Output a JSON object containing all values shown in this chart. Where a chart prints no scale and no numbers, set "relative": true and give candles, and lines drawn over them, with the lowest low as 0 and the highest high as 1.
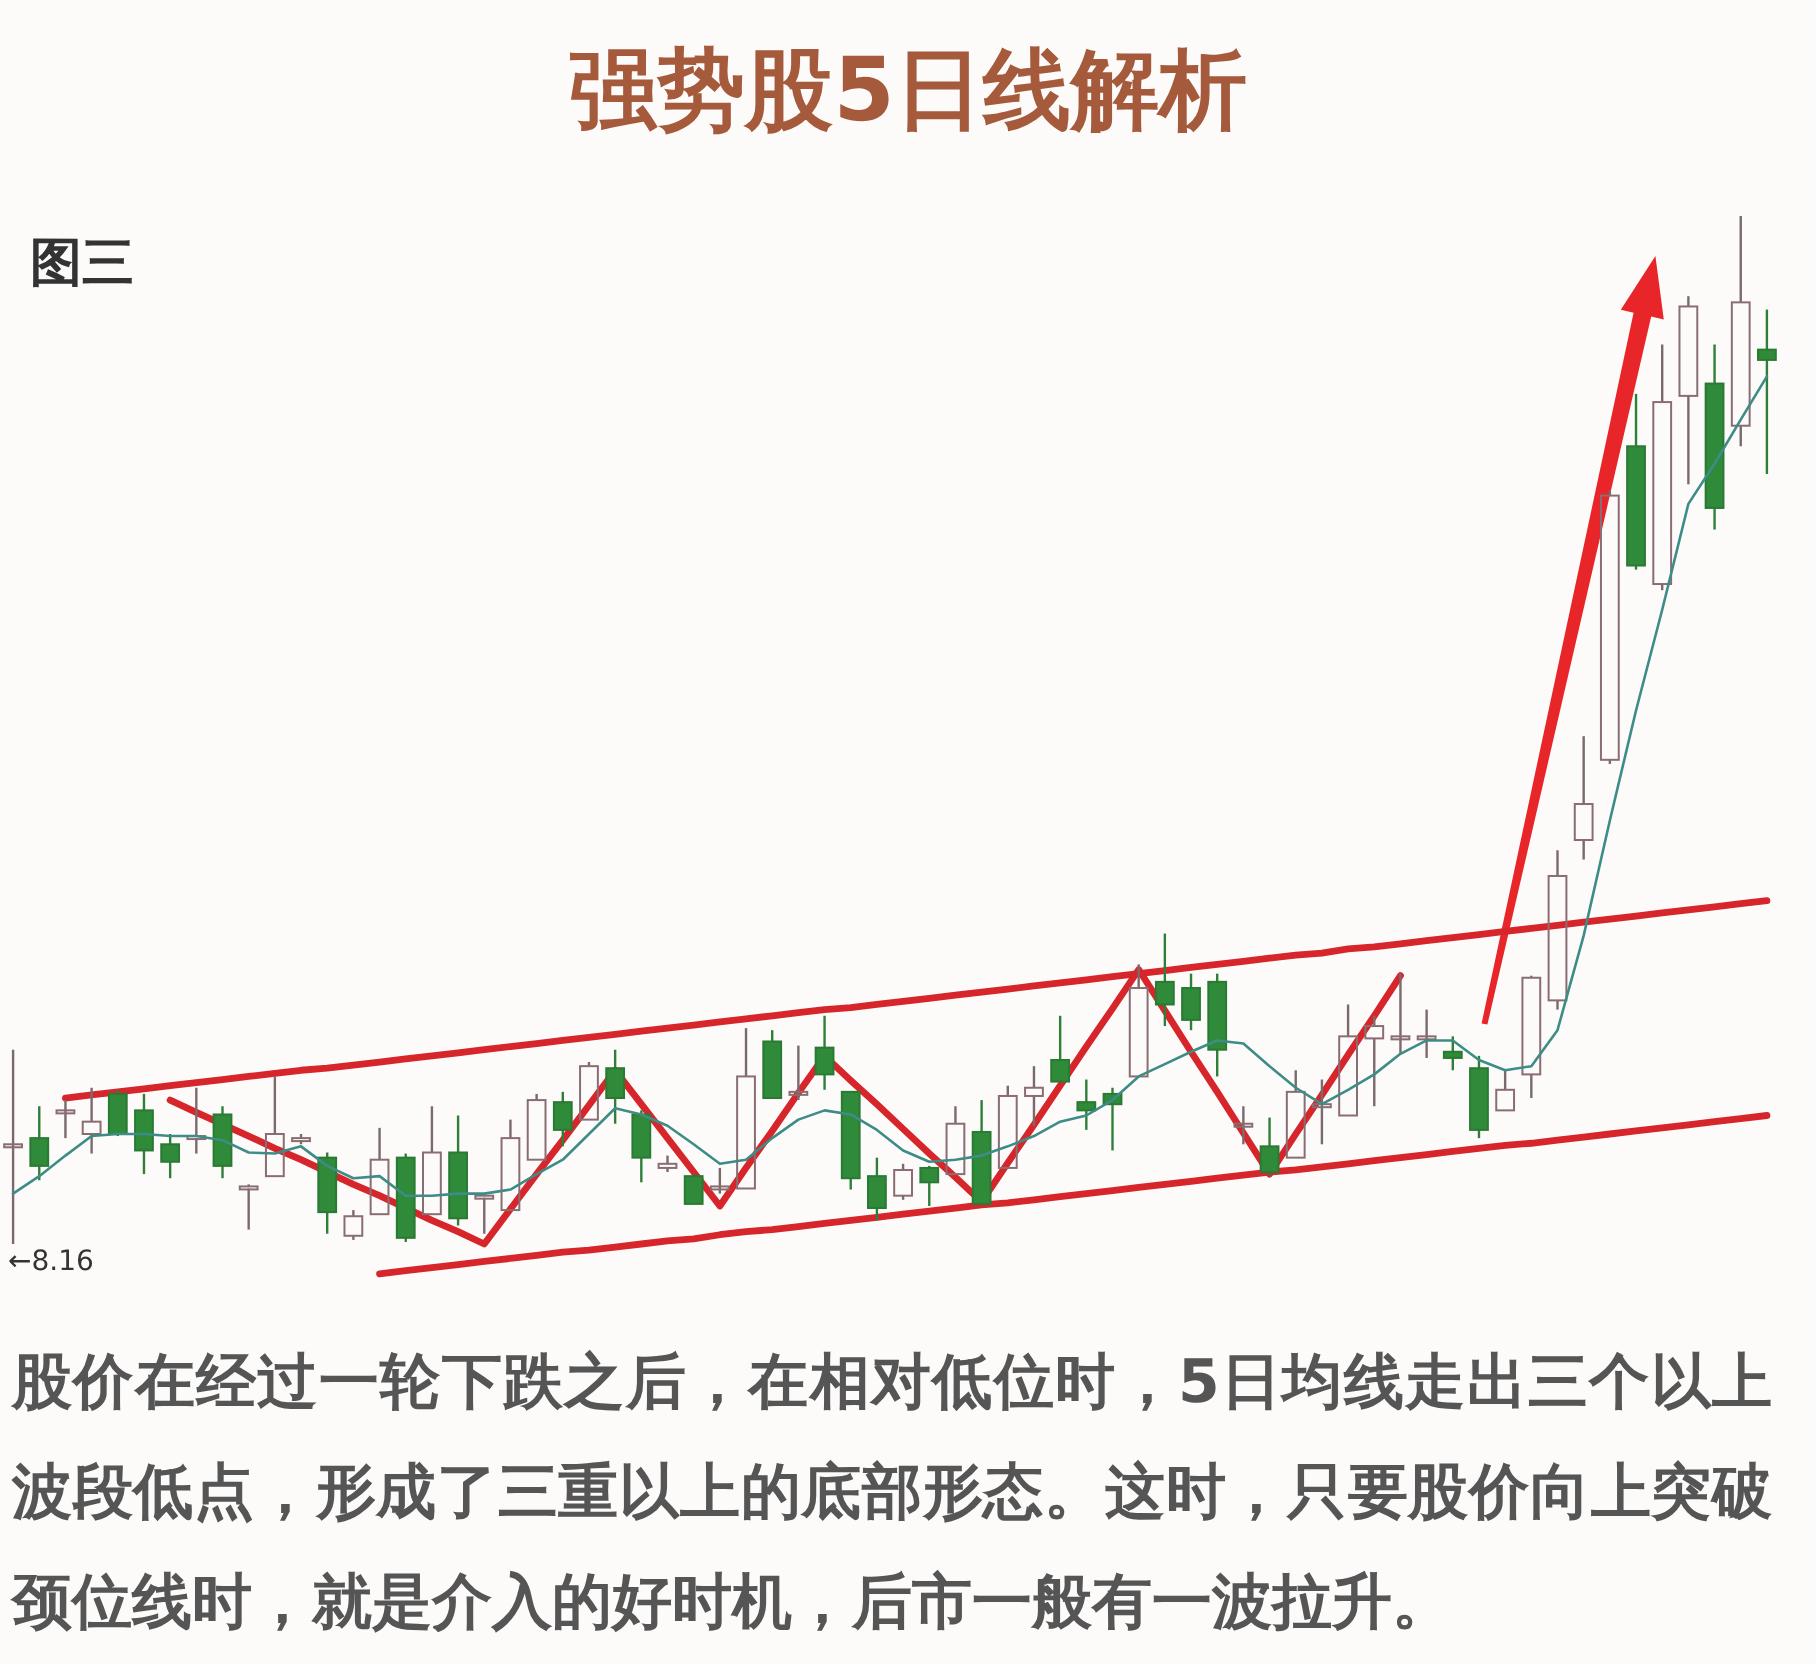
{
  "chart_data": {
    "type": "candlestick",
    "title": "强势股5日线解析",
    "annotations": [
      "图三",
      "←8.16",
      "股价在经过一轮下跌之后，在相对低位时，5日均线走出三个以上波段低点，形成了三重以上的底部形态。这时，只要股价向上突破颈位线时，就是介入的好时机，后市一般有一波拉升。"
    ],
    "relative": true,
    "categories": [
      null,
      null,
      null,
      null,
      null,
      null,
      null,
      null,
      null,
      null,
      null,
      null,
      null,
      null,
      null,
      null,
      null,
      null,
      null,
      null,
      null,
      null,
      null,
      null,
      null,
      null,
      null,
      null,
      null,
      null,
      null,
      null,
      null,
      null,
      null,
      null,
      null,
      null,
      null,
      null,
      null,
      null,
      null,
      null,
      null,
      null,
      null,
      null,
      null,
      null,
      null,
      null,
      null,
      null,
      null,
      null,
      null,
      null,
      null,
      null,
      null,
      null,
      null,
      null,
      null,
      null,
      null,
      null
    ],
    "ohlc": [
      [
        0.097,
        0.189,
        0,
        0.097
      ],
      [
        0.103,
        0.134,
        0.062,
        0.076
      ],
      [
        0.13,
        0.14,
        0.103,
        0.13
      ],
      [
        0.107,
        0.152,
        0.088,
        0.119
      ],
      [
        0.146,
        0.15,
        0.105,
        0.107
      ],
      [
        0.13,
        0.146,
        0.068,
        0.091
      ],
      [
        0.097,
        0.107,
        0.064,
        0.08
      ],
      [
        0.103,
        0.152,
        0.088,
        0.105
      ],
      [
        0.126,
        0.134,
        0.064,
        0.076
      ],
      [
        0.054,
        0.058,
        0.014,
        0.056
      ],
      [
        0.066,
        0.163,
        0.066,
        0.107
      ],
      [
        0.101,
        0.107,
        0.097,
        0.103
      ],
      [
        0.084,
        0.089,
        0.01,
        0.031
      ],
      [
        0.008,
        0.033,
        0.004,
        0.027
      ],
      [
        0.029,
        0.113,
        0.029,
        0.082
      ],
      [
        0.084,
        0.088,
        0.002,
        0.006
      ],
      [
        0.029,
        0.134,
        0.029,
        0.089
      ],
      [
        0.089,
        0.125,
        0.018,
        0.025
      ],
      [
        0.045,
        0.049,
        0.01,
        0.047
      ],
      [
        0.033,
        0.121,
        0.033,
        0.103
      ],
      [
        0.082,
        0.146,
        0.082,
        0.14
      ],
      [
        0.138,
        0.148,
        0.095,
        0.111
      ],
      [
        0.121,
        0.177,
        0.121,
        0.173
      ],
      [
        0.171,
        0.189,
        0.117,
        0.142
      ],
      [
        0.126,
        0.13,
        0.06,
        0.084
      ],
      [
        0.074,
        0.086,
        0.07,
        0.078
      ],
      [
        0.066,
        0.068,
        0.039,
        0.039
      ],
      [
        0.056,
        0.074,
        0.049,
        0.056
      ],
      [
        0.054,
        0.21,
        0.054,
        0.163
      ],
      [
        0.197,
        0.208,
        0.142,
        0.142
      ],
      [
        0.148,
        0.193,
        0.14,
        0.148
      ],
      [
        0.191,
        0.222,
        0.15,
        0.165
      ],
      [
        0.148,
        0.148,
        0.053,
        0.064
      ],
      [
        0.066,
        0.084,
        0.023,
        0.035
      ],
      [
        0.047,
        0.078,
        0.043,
        0.072
      ],
      [
        0.074,
        0.076,
        0.037,
        0.06
      ],
      [
        0.068,
        0.134,
        0.068,
        0.117
      ],
      [
        0.109,
        0.14,
        0.039,
        0.039
      ],
      [
        0.074,
        0.154,
        0.074,
        0.144
      ],
      [
        0.144,
        0.173,
        0.115,
        0.152
      ],
      [
        0.179,
        0.222,
        0.158,
        0.158
      ],
      [
        0.138,
        0.16,
        0.111,
        0.13
      ],
      [
        0.146,
        0.152,
        0.091,
        0.136
      ],
      [
        0.163,
        0.272,
        0.163,
        0.249
      ],
      [
        0.255,
        0.302,
        0.212,
        0.233
      ],
      [
        0.249,
        0.263,
        0.208,
        0.218
      ],
      [
        0.255,
        0.263,
        0.163,
        0.189
      ],
      [
        0.117,
        0.134,
        0.097,
        0.117
      ],
      [
        0.095,
        0.123,
        0.066,
        0.07
      ],
      [
        0.084,
        0.169,
        0.084,
        0.148
      ],
      [
        0.136,
        0.16,
        0.097,
        0.136
      ],
      [
        0.125,
        0.233,
        0.125,
        0.202
      ],
      [
        0.2,
        0.222,
        0.134,
        0.212
      ],
      [
        0.202,
        0.263,
        0.185,
        0.202
      ],
      [
        0.202,
        0.228,
        0.181,
        0.202
      ],
      [
        0.187,
        0.202,
        0.169,
        0.181
      ],
      [
        0.171,
        0.183,
        0.103,
        0.111
      ],
      [
        0.13,
        0.169,
        0.13,
        0.15
      ],
      [
        0.165,
        0.261,
        0.142,
        0.259
      ],
      [
        0.237,
        0.383,
        0.228,
        0.358
      ],
      [
        0.393,
        0.494,
        0.374,
        0.428
      ],
      [
        0.471,
        0.733,
        0.467,
        0.728
      ],
      [
        0.776,
        0.827,
        0.656,
        0.66
      ],
      [
        0.642,
        0.875,
        0.636,
        0.819
      ],
      [
        0.825,
        0.922,
        0.739,
        0.912
      ],
      [
        0.837,
        0.875,
        0.695,
        0.716
      ],
      [
        0.796,
        1,
        0.776,
        0.916
      ],
      [
        0.87,
        0.909,
        0.749,
        0.86
      ]
    ],
    "series": [
      {
        "type": "line",
        "color": "#3d8c86",
        "values": [
          0.049,
          0.066,
          0.086,
          0.105,
          0.107,
          0.107,
          0.105,
          0.105,
          0.101,
          0.089,
          0.088,
          0.095,
          0.076,
          0.064,
          0.066,
          0.047,
          0.047,
          0.049,
          0.049,
          0.053,
          0.068,
          0.082,
          0.107,
          0.132,
          0.126,
          0.115,
          0.097,
          0.078,
          0.082,
          0.103,
          0.121,
          0.13,
          0.126,
          0.111,
          0.091,
          0.08,
          0.082,
          0.086,
          0.095,
          0.105,
          0.119,
          0.125,
          0.14,
          0.163,
          0.175,
          0.187,
          0.198,
          0.195,
          0.173,
          0.152,
          0.136,
          0.15,
          0.165,
          0.185,
          0.198,
          0.198,
          0.179,
          0.169,
          0.173,
          0.208,
          0.3,
          0.412,
          0.519,
          0.617,
          0.72,
          0.759,
          0.802,
          0.844
        ]
      },
      {
        "type": "line",
        "color": "#d7262b",
        "values": [
          null,
          null,
          0.142,
          0.145,
          0.148,
          0.151,
          0.154,
          0.157,
          0.16,
          0.163,
          0.166,
          0.169,
          0.171,
          0.174,
          0.177,
          0.18,
          0.183,
          0.186,
          0.189,
          0.192,
          0.195,
          0.198,
          0.201,
          0.204,
          0.207,
          0.21,
          0.213,
          0.216,
          0.219,
          0.222,
          0.225,
          0.228,
          0.23,
          0.233,
          0.236,
          0.239,
          0.242,
          0.245,
          0.248,
          0.251,
          0.254,
          0.257,
          0.26,
          0.263,
          0.266,
          0.269,
          0.272,
          0.275,
          0.278,
          0.281,
          0.283,
          0.287,
          0.289,
          0.292,
          0.295,
          0.298,
          0.301,
          0.304,
          0.307,
          0.31,
          0.313,
          0.316,
          0.319,
          0.322,
          0.325,
          0.328,
          0.331,
          0.334
        ]
      },
      {
        "type": "line",
        "color": "#d7262b",
        "values": [
          null,
          null,
          null,
          null,
          null,
          null,
          null,
          null,
          null,
          null,
          null,
          null,
          null,
          null,
          -0.029,
          -0.026,
          -0.023,
          -0.02,
          -0.017,
          -0.014,
          -0.011,
          -0.008,
          -0.006,
          -0.003,
          0,
          0.003,
          0.005,
          0.009,
          0.012,
          0.014,
          0.017,
          0.02,
          0.023,
          0.026,
          0.029,
          0.032,
          0.035,
          0.038,
          0.04,
          0.043,
          0.046,
          0.049,
          0.052,
          0.055,
          0.058,
          0.061,
          0.064,
          0.067,
          0.07,
          0.072,
          0.075,
          0.078,
          0.081,
          0.084,
          0.087,
          0.09,
          0.093,
          0.096,
          0.098,
          0.101,
          0.104,
          0.107,
          0.11,
          0.113,
          0.116,
          0.119,
          0.122,
          0.125
        ]
      },
      {
        "type": "line",
        "color": "#d7262b",
        "values": [
          null,
          null,
          null,
          null,
          null,
          null,
          0.14,
          0.128,
          null,
          0.105,
          0.093,
          0.082,
          null,
          0.058,
          0.047,
          null,
          0.023,
          0.012,
          0,
          0.034,
          0.068,
          0.101,
          0.135,
          0.169,
          0.136,
          0.103,
          0.07,
          0.037,
          0.074,
          0.11,
          0.147,
          0.183,
          0.159,
          0.136,
          0.112,
          0.088,
          0.065,
          0.041,
          0.079,
          0.116,
          0.154,
          0.192,
          0.229,
          0.267,
          0.227,
          0.187,
          0.148,
          0.108,
          0.068,
          0.107,
          0.145,
          0.184,
          0.222,
          0.261,
          null,
          null,
          null,
          null,
          null,
          null,
          null,
          null,
          null,
          null,
          null,
          null,
          null,
          null
        ]
      }
    ]
  }
}
